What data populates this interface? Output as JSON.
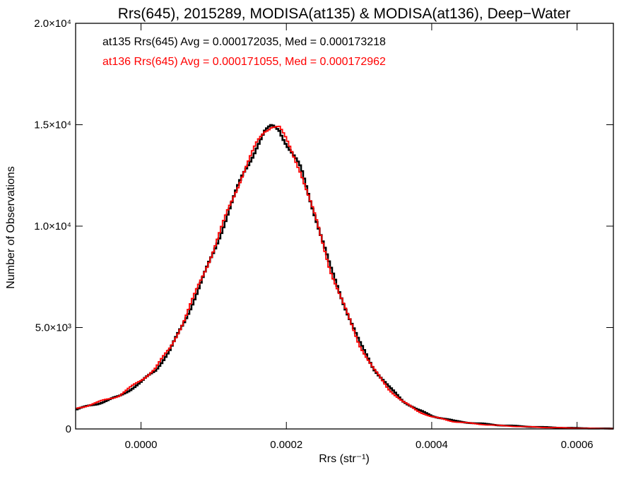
{
  "chart_data": {
    "type": "histogram",
    "title": "Rrs(645), 2015289, MODISA(at135) & MODISA(at136), Deep−Water",
    "xlabel": "Rrs (str⁻¹)",
    "ylabel": "Number of Observations",
    "xlim": [
      -9e-05,
      0.00065
    ],
    "ylim": [
      0,
      20000
    ],
    "x_ticks": [
      {
        "value": 0.0,
        "label": "0.0000"
      },
      {
        "value": 0.0002,
        "label": "0.0002"
      },
      {
        "value": 0.0004,
        "label": "0.0004"
      },
      {
        "value": 0.0006,
        "label": "0.0006"
      }
    ],
    "y_ticks": [
      {
        "value": 0,
        "label": "0"
      },
      {
        "value": 5000,
        "label": "5.0×10³"
      },
      {
        "value": 10000,
        "label": "1.0×10⁴"
      },
      {
        "value": 15000,
        "label": "1.5×10⁴"
      },
      {
        "value": 20000,
        "label": "2.0×10⁴"
      }
    ],
    "annotations": [
      "at135 Rrs(645) Avg = 0.000172035, Med = 0.000173218",
      "at136 Rrs(645) Avg = 0.000171055, Med = 0.000172962"
    ],
    "series": [
      {
        "color": "#000000",
        "points": [
          [
            -9e-05,
            950
          ],
          [
            -6e-05,
            1250
          ],
          [
            -3e-05,
            1600
          ],
          [
            0.0,
            2300
          ],
          [
            2e-05,
            2900
          ],
          [
            4e-05,
            3900
          ],
          [
            6e-05,
            5300
          ],
          [
            8e-05,
            7000
          ],
          [
            0.0001,
            8700
          ],
          [
            0.00012,
            10700
          ],
          [
            0.00014,
            12500
          ],
          [
            0.00016,
            14000
          ],
          [
            0.00017,
            14600
          ],
          [
            0.00018,
            14900
          ],
          [
            0.00019,
            14800
          ],
          [
            0.0002,
            14100
          ],
          [
            0.00022,
            12800
          ],
          [
            0.00024,
            10500
          ],
          [
            0.00026,
            8000
          ],
          [
            0.00028,
            6100
          ],
          [
            0.0003,
            4300
          ],
          [
            0.00032,
            3000
          ],
          [
            0.00034,
            2100
          ],
          [
            0.00036,
            1400
          ],
          [
            0.00038,
            950
          ],
          [
            0.0004,
            650
          ],
          [
            0.00043,
            400
          ],
          [
            0.00046,
            280
          ],
          [
            0.0005,
            170
          ],
          [
            0.00055,
            90
          ],
          [
            0.0006,
            40
          ],
          [
            0.00065,
            15
          ]
        ]
      },
      {
        "color": "#ff0000",
        "points": [
          [
            -9e-05,
            1000
          ],
          [
            -6e-05,
            1300
          ],
          [
            -3e-05,
            1650
          ],
          [
            0.0,
            2400
          ],
          [
            2e-05,
            3000
          ],
          [
            4e-05,
            4000
          ],
          [
            6e-05,
            5400
          ],
          [
            8e-05,
            7150
          ],
          [
            0.0001,
            8850
          ],
          [
            0.00012,
            10800
          ],
          [
            0.00014,
            12600
          ],
          [
            0.00016,
            14100
          ],
          [
            0.00017,
            14700
          ],
          [
            0.00018,
            15000
          ],
          [
            0.00019,
            14900
          ],
          [
            0.0002,
            14200
          ],
          [
            0.00022,
            12700
          ],
          [
            0.00024,
            10400
          ],
          [
            0.00026,
            7900
          ],
          [
            0.00028,
            6000
          ],
          [
            0.0003,
            4200
          ],
          [
            0.00032,
            2950
          ],
          [
            0.00034,
            2000
          ],
          [
            0.00036,
            1350
          ],
          [
            0.00038,
            900
          ],
          [
            0.0004,
            600
          ],
          [
            0.00043,
            370
          ],
          [
            0.00046,
            250
          ],
          [
            0.0005,
            150
          ],
          [
            0.00055,
            80
          ],
          [
            0.0006,
            35
          ],
          [
            0.00065,
            12
          ]
        ]
      }
    ]
  }
}
